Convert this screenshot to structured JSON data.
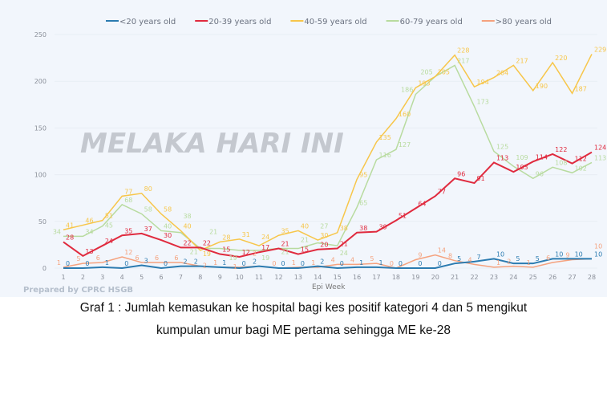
{
  "chart_data": {
    "type": "line",
    "title": "",
    "xlabel": "Epi Week",
    "ylabel": "",
    "ylim": [
      0,
      250
    ],
    "yticks": [
      0,
      50,
      100,
      150,
      200,
      250
    ],
    "x": [
      1,
      2,
      3,
      4,
      5,
      6,
      7,
      8,
      9,
      10,
      11,
      12,
      13,
      14,
      15,
      16,
      17,
      18,
      19,
      20,
      21,
      22,
      23,
      24,
      25,
      26,
      27,
      28
    ],
    "grid": true,
    "legend_position": "top",
    "series": [
      {
        "name": "<20 years old",
        "color": "#2b7bb0",
        "values": [
          0,
          0,
          1,
          0,
          3,
          0,
          2,
          2,
          1,
          0,
          2,
          0,
          0,
          2,
          0,
          1,
          1,
          0,
          0,
          0,
          5,
          7,
          10,
          5,
          5,
          10,
          10,
          10
        ]
      },
      {
        "name": "20-39 years old",
        "color": "#e02a3e",
        "values": [
          28,
          13,
          24,
          35,
          37,
          30,
          22,
          22,
          15,
          12,
          17,
          21,
          15,
          20,
          21,
          38,
          39,
          51,
          64,
          77,
          96,
          91,
          113,
          103,
          114,
          122,
          112,
          124
        ]
      },
      {
        "name": "40-59 years old",
        "color": "#f7c64a",
        "values": [
          41,
          46,
          51,
          77,
          80,
          58,
          40,
          19,
          28,
          31,
          24,
          35,
          40,
          30,
          38,
          95,
          135,
          160,
          193,
          205,
          228,
          194,
          204,
          217,
          190,
          220,
          187,
          229
        ]
      },
      {
        "name": "60-79 years old",
        "color": "#b8db9f",
        "values": [
          34,
          34,
          45,
          68,
          58,
          40,
          38,
          21,
          21,
          19,
          19,
          21,
          21,
          27,
          24,
          65,
          116,
          127,
          186,
          205,
          217,
          173,
          125,
          109,
          96,
          108,
          102,
          113
        ]
      },
      {
        "name": ">80 years old",
        "color": "#f5a27e",
        "values": [
          1,
          5,
          6,
          12,
          6,
          6,
          6,
          2,
          1,
          1,
          2,
          0,
          1,
          1,
          4,
          4,
          5,
          0,
          9,
          14,
          8,
          4,
          1,
          2,
          1,
          6,
          9,
          10
        ]
      }
    ]
  },
  "prepared_by": "Prepared by CPRC HSGB",
  "watermark": "MELAKA HARI INI",
  "caption": {
    "line1": "Graf 1 : Jumlah kemasukan ke hospital bagi kes positif kategori 4 dan 5 mengikut",
    "line2": "kumpulan umur bagi ME pertama sehingga ME ke-28"
  }
}
